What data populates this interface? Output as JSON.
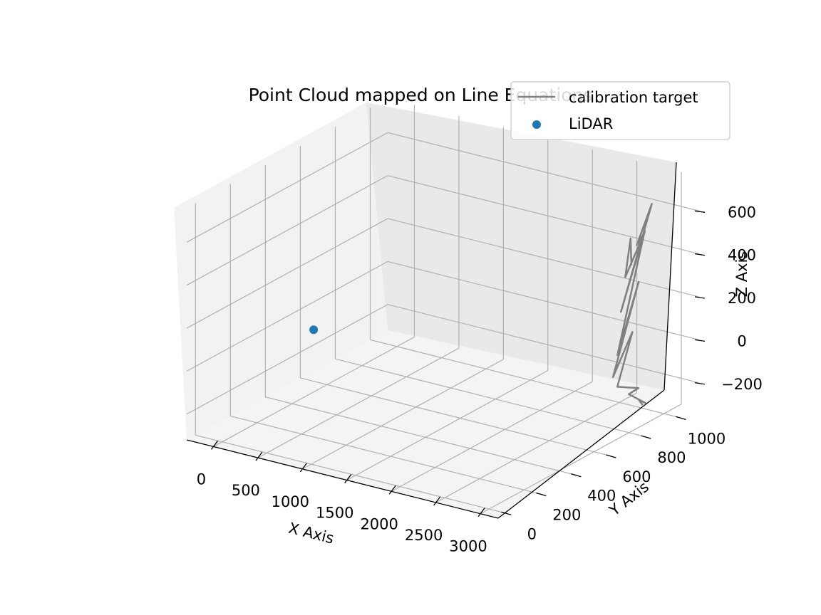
{
  "chart_data": {
    "type": "scatter",
    "projection": "3d",
    "title": "Point Cloud mapped on Line Equations",
    "xlabel": "X Axis",
    "ylabel": "Y Axis",
    "zlabel": "Z Axis",
    "xlim": [
      -300,
      3200
    ],
    "ylim": [
      -50,
      1100
    ],
    "zlim": [
      -320,
      760
    ],
    "x_ticks": [
      "0",
      "500",
      "1000",
      "1500",
      "2000",
      "2500",
      "3000"
    ],
    "y_ticks": [
      "0",
      "200",
      "400",
      "600",
      "800",
      "1000"
    ],
    "z_ticks": [
      "−200",
      "0",
      "200",
      "400",
      "600"
    ],
    "grid": true,
    "legend": {
      "position": "top-right",
      "entries": [
        {
          "label": "calibration target",
          "marker": "line",
          "color": "#808080"
        },
        {
          "label": "LiDAR",
          "marker": "dot",
          "color": "#1f77b4"
        }
      ]
    },
    "series": [
      {
        "name": "calibration target",
        "kind": "line",
        "color": "#808080",
        "points": [
          [
            2900,
            930,
            -260
          ],
          [
            2900,
            910,
            -230
          ],
          [
            2950,
            920,
            -240
          ],
          [
            2880,
            860,
            -180
          ],
          [
            2990,
            860,
            -140
          ],
          [
            2870,
            800,
            -120
          ],
          [
            3000,
            820,
            140
          ],
          [
            2880,
            770,
            -60
          ],
          [
            3070,
            820,
            380
          ],
          [
            2910,
            780,
            40
          ],
          [
            3060,
            860,
            600
          ],
          [
            2930,
            790,
            240
          ],
          [
            3100,
            880,
            720
          ],
          [
            2990,
            850,
            530
          ],
          [
            3020,
            880,
            580
          ],
          [
            2900,
            830,
            380
          ],
          [
            2940,
            840,
            560
          ],
          [
            2930,
            850,
            430
          ]
        ]
      },
      {
        "name": "LiDAR",
        "kind": "scatter",
        "color": "#1f77b4",
        "points": [
          [
            -150,
            600,
            -80
          ]
        ]
      }
    ]
  }
}
